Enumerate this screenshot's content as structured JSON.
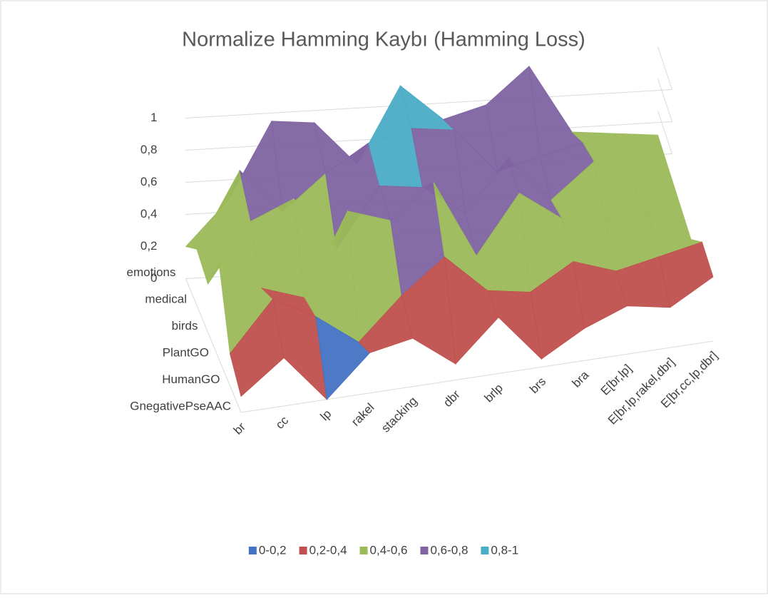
{
  "chart_data": {
    "type": "surface",
    "title": "Normalize Hamming Kaybı (Hamming Loss)",
    "categories": [
      "br",
      "cc",
      "lp",
      "rakel",
      "stacking",
      "dbr",
      "brlp",
      "brs",
      "bra",
      "E[br,lp]",
      "E[br,lp,rakel,dbr]",
      "E[br,cc,lp,dbr]"
    ],
    "series": [
      {
        "name": "emotions",
        "values": [
          0.2,
          0.45,
          0.9,
          0.85,
          0.55,
          1.0,
          0.75,
          0.8,
          1.0,
          0.55,
          0.5,
          0.45
        ]
      },
      {
        "name": "medical",
        "values": [
          0.35,
          0.8,
          0.5,
          0.7,
          0.85,
          0.9,
          0.85,
          0.55,
          0.6,
          0.65,
          0.55,
          0.4
        ]
      },
      {
        "name": "birds",
        "values": [
          0.3,
          0.65,
          0.75,
          0.4,
          0.75,
          0.7,
          0.5,
          0.8,
          0.5,
          0.7,
          0.45,
          0.35
        ]
      },
      {
        "name": "PlantGO",
        "values": [
          0.6,
          0.4,
          0.3,
          0.8,
          0.7,
          0.9,
          0.4,
          0.75,
          0.55,
          0.5,
          0.5,
          0.3
        ]
      },
      {
        "name": "HumanGO",
        "values": [
          0.2,
          0.5,
          0.35,
          0.15,
          0.4,
          0.6,
          0.35,
          0.3,
          0.45,
          0.35,
          0.4,
          0.45
        ]
      },
      {
        "name": "GnegativePseAAC",
        "values": [
          0.1,
          0.3,
          0.0,
          0.25,
          0.3,
          0.1,
          0.35,
          0.05,
          0.2,
          0.3,
          0.25,
          0.4
        ]
      }
    ],
    "zlim": [
      0,
      1
    ],
    "zticks": [
      0,
      {
        "value": 0.2,
        "label": "0,2"
      },
      {
        "value": 0.4,
        "label": "0,4"
      },
      {
        "value": 0.6,
        "label": "0,6"
      },
      {
        "value": 0.8,
        "label": "0,8"
      },
      1
    ],
    "bands": [
      {
        "name": "0-0,2",
        "color": "#4472c4"
      },
      {
        "name": "0,2-0,4",
        "color": "#c0504d"
      },
      {
        "name": "0,4-0,6",
        "color": "#9bbb59"
      },
      {
        "name": "0,6-0,8",
        "color": "#8064a2"
      },
      {
        "name": "0,8-1",
        "color": "#4bacc6"
      }
    ],
    "legend": "bottom",
    "grid": true
  }
}
